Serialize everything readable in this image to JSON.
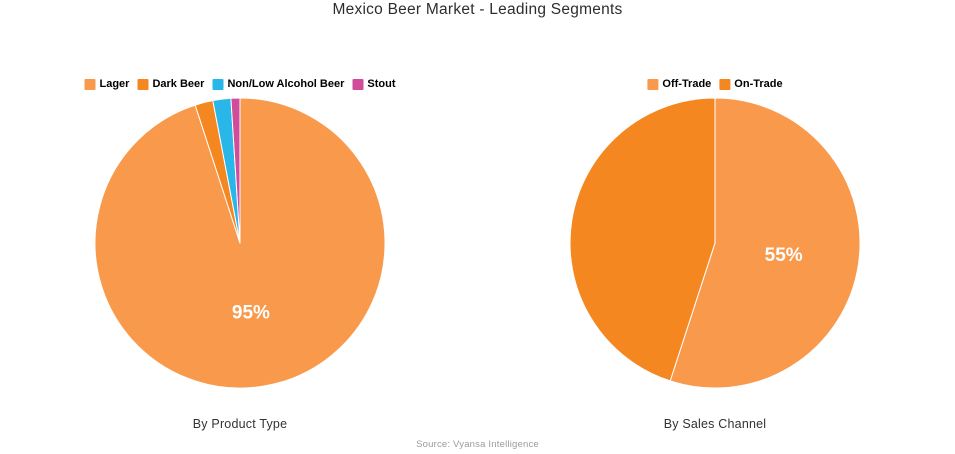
{
  "page": {
    "title": "Mexico Beer Market - Leading Segments",
    "source": "Source: Vyansa Intelligence",
    "background": "#ffffff"
  },
  "chart_data": [
    {
      "type": "pie",
      "title": "By Product Type",
      "categories": [
        "Lager",
        "Dark Beer",
        "Non/Low Alcohol Beer",
        "Stout"
      ],
      "values": [
        95,
        2,
        2,
        1
      ],
      "colors": [
        "#F8994C",
        "#F58720",
        "#29B6E8",
        "#D04D9B"
      ],
      "slice_labels": [
        "95%",
        "",
        "",
        ""
      ],
      "label_color": "#ffffff",
      "legend_position": "top",
      "start_angle_deg": 0,
      "direction": "clockwise"
    },
    {
      "type": "pie",
      "title": "By Sales Channel",
      "categories": [
        "Off-Trade",
        "On-Trade"
      ],
      "values": [
        55,
        45
      ],
      "colors": [
        "#F8994C",
        "#F58720"
      ],
      "slice_labels": [
        "55%",
        ""
      ],
      "label_color": "#ffffff",
      "legend_position": "top",
      "start_angle_deg": 0,
      "direction": "clockwise"
    }
  ]
}
